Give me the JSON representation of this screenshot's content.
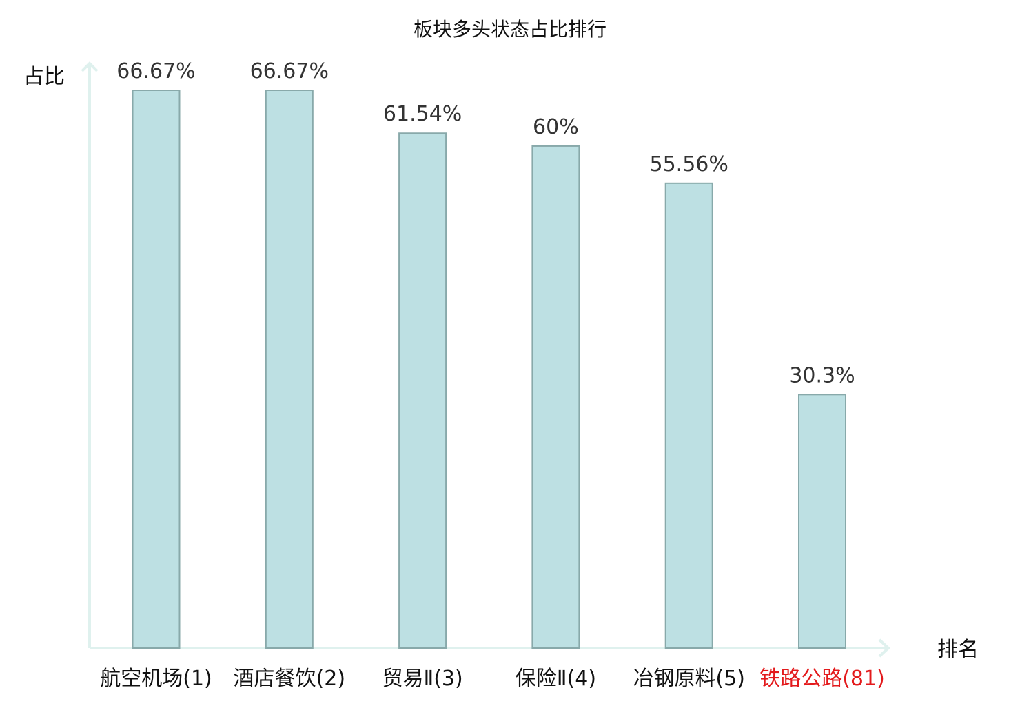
{
  "chart_data": {
    "type": "bar",
    "title": "板块多头状态占比排行",
    "xlabel": "排名",
    "ylabel": "占比",
    "categories": [
      "航空机场(1)",
      "酒店餐饮(2)",
      "贸易Ⅱ(3)",
      "保险Ⅱ(4)",
      "冶钢原料(5)",
      "铁路公路(81)"
    ],
    "values": [
      66.67,
      66.67,
      61.54,
      60,
      55.56,
      30.3
    ],
    "value_labels": [
      "66.67%",
      "66.67%",
      "61.54%",
      "60%",
      "55.56%",
      "30.3%"
    ],
    "highlight_index": 5,
    "ylim": [
      0,
      66.67
    ],
    "grid": false,
    "colors": {
      "bar_fill": "#bde0e3",
      "bar_stroke": "#88a9aa",
      "axis": "#dff1ee",
      "highlight_text": "#e31a1c"
    }
  }
}
